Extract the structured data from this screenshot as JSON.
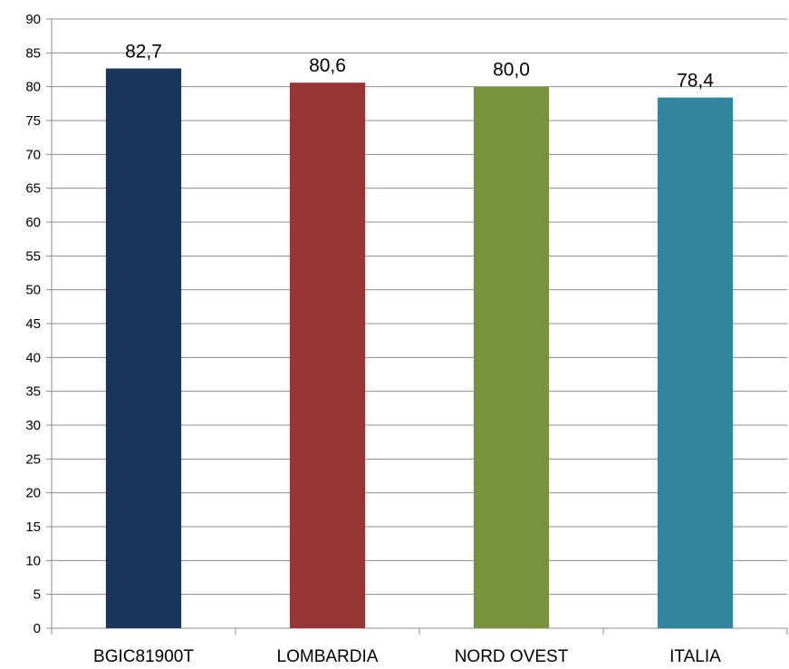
{
  "chart_data": {
    "type": "bar",
    "title": "",
    "xlabel": "",
    "ylabel": "",
    "categories": [
      "BGIC81900T",
      "LOMBARDIA",
      "NORD OVEST",
      "ITALIA"
    ],
    "values": [
      82.7,
      80.6,
      80.0,
      78.4
    ],
    "value_labels": [
      "82,7",
      "80,6",
      "80,0",
      "78,4"
    ],
    "colors": [
      "#1b365d",
      "#963634",
      "#77933c",
      "#31859c"
    ],
    "ylim": [
      0,
      90
    ],
    "ytick_step": 5,
    "grid": true,
    "legend": "none"
  }
}
